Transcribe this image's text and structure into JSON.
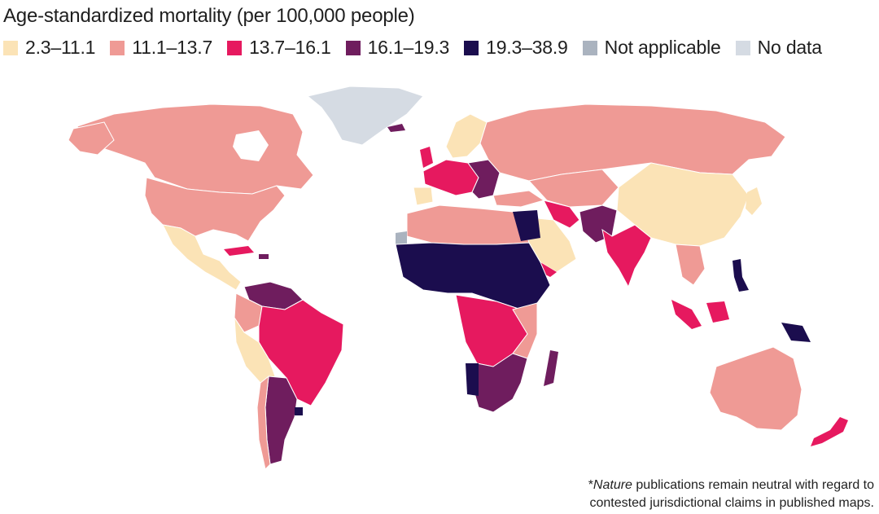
{
  "title": "Age-standardized mortality (per 100,000 people)",
  "legend": [
    {
      "label": "2.3–11.1",
      "color": "#fbe3b6"
    },
    {
      "label": "11.1–13.7",
      "color": "#ef9a95"
    },
    {
      "label": "13.7–16.1",
      "color": "#e6195f"
    },
    {
      "label": "16.1–19.3",
      "color": "#6f1d5e"
    },
    {
      "label": "19.3–38.9",
      "color": "#1b0d4e"
    },
    {
      "label": "Not applicable",
      "color": "#aab3bf"
    },
    {
      "label": "No data",
      "color": "#d5dbe3"
    }
  ],
  "note": {
    "prefix": "*",
    "italic": "Nature",
    "line1_rest": " publications remain neutral with regard to",
    "line2": "contested jurisdictional claims in published maps."
  },
  "map_regions": [
    {
      "name": "Greenland",
      "class": "No data"
    },
    {
      "name": "Canada",
      "class": "11.1–13.7"
    },
    {
      "name": "United States",
      "class": "11.1–13.7"
    },
    {
      "name": "Mexico",
      "class": "2.3–11.1"
    },
    {
      "name": "Brazil",
      "class": "13.7–16.1"
    },
    {
      "name": "Argentina",
      "class": "16.1–19.3"
    },
    {
      "name": "Russia",
      "class": "11.1–13.7"
    },
    {
      "name": "China",
      "class": "2.3–11.1"
    },
    {
      "name": "India",
      "class": "13.7–16.1"
    },
    {
      "name": "Australia",
      "class": "11.1–13.7"
    },
    {
      "name": "Sahel belt",
      "class": "19.3–38.9"
    },
    {
      "name": "Central Africa",
      "class": "13.7–16.1"
    },
    {
      "name": "Southern Africa",
      "class": "16.1–19.3"
    },
    {
      "name": "Western Sahara",
      "class": "Not applicable"
    }
  ]
}
